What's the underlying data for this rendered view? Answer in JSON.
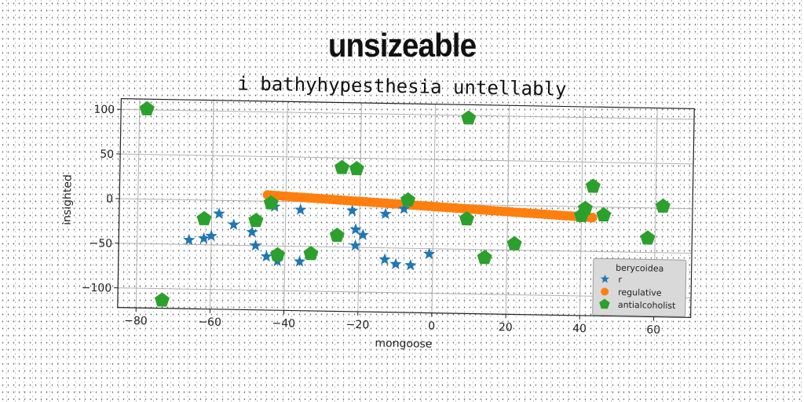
{
  "title": "unsizeable",
  "subtitle": "i bathyhypesthesia untellably",
  "chart_data": {
    "type": "scatter",
    "xlabel": "mongoose",
    "ylabel": "insighted",
    "xlim": [
      -85,
      70
    ],
    "ylim": [
      -122,
      112
    ],
    "xticks": [
      -80,
      -60,
      -40,
      -20,
      0,
      20,
      40,
      60
    ],
    "yticks": [
      -100,
      -50,
      0,
      50,
      100
    ],
    "grid": true,
    "legend": {
      "title": "berycoidea",
      "placement": "lower-right"
    },
    "series": [
      {
        "name": "r",
        "marker": "star",
        "color": "#1f77b4",
        "points": [
          [
            -66,
            -45
          ],
          [
            -62,
            -43
          ],
          [
            -60,
            -40
          ],
          [
            -58,
            -15
          ],
          [
            -54,
            -27
          ],
          [
            -49,
            -35
          ],
          [
            -48,
            -50
          ],
          [
            -45,
            -62
          ],
          [
            -43,
            -6
          ],
          [
            -42,
            -67
          ],
          [
            -36,
            -9
          ],
          [
            -36,
            -67
          ],
          [
            -22,
            -9
          ],
          [
            -21,
            -30
          ],
          [
            -21,
            -48
          ],
          [
            -19,
            -36
          ],
          [
            -13,
            -12
          ],
          [
            -13,
            -63
          ],
          [
            -10,
            -68
          ],
          [
            -8,
            -6
          ],
          [
            -6,
            -69
          ],
          [
            -1,
            -56
          ]
        ]
      },
      {
        "name": "regulative",
        "marker": "circle",
        "color": "#ff7f0e",
        "line": {
          "x0": -45,
          "y0": 7,
          "x1": 43,
          "y1": -12,
          "count": 90
        }
      },
      {
        "name": "antialcoholist",
        "marker": "pentagon",
        "color": "#2ca02c",
        "points": [
          [
            -78,
            101
          ],
          [
            -73,
            -113
          ],
          [
            -62,
            -21
          ],
          [
            -48,
            -22
          ],
          [
            -44,
            -2
          ],
          [
            -42,
            -60
          ],
          [
            -33,
            -58
          ],
          [
            -26,
            -37
          ],
          [
            -25,
            39
          ],
          [
            -21,
            38
          ],
          [
            -7,
            4
          ],
          [
            9,
            97
          ],
          [
            9,
            -16
          ],
          [
            14,
            -59
          ],
          [
            22,
            -43
          ],
          [
            40,
            -10
          ],
          [
            41,
            -2
          ],
          [
            43,
            23
          ],
          [
            46,
            -9
          ],
          [
            58,
            -34
          ],
          [
            62,
            2
          ]
        ]
      }
    ]
  }
}
